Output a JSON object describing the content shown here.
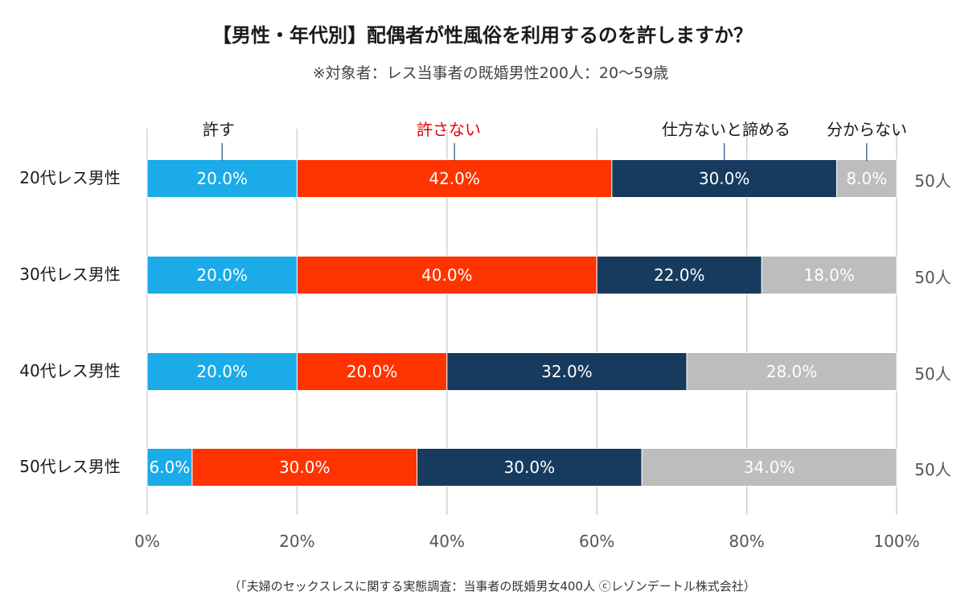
{
  "chart_data": {
    "type": "bar",
    "orientation": "horizontal",
    "stacked": true,
    "title": "【男性・年代別】配偶者が性風俗を利用するのを許しますか？",
    "subtitle": "※対象者：レス当事者の既婚男性200人：20～59歳",
    "categories": [
      "20代レス男性",
      "30代レス男性",
      "40代レス男性",
      "50代レス男性"
    ],
    "sample_sizes": [
      "50人",
      "50人",
      "50人",
      "50人"
    ],
    "series": [
      {
        "name": "許す",
        "color": "#1aabe8",
        "label_color": "#1a1a1a",
        "values": [
          20.0,
          20.0,
          20.0,
          6.0
        ]
      },
      {
        "name": "許さない",
        "color": "#ff3300",
        "label_color": "#e60000",
        "values": [
          42.0,
          40.0,
          20.0,
          30.0
        ]
      },
      {
        "name": "仕方ないと諦める",
        "color": "#173b5f",
        "label_color": "#1a1a1a",
        "values": [
          30.0,
          22.0,
          32.0,
          30.0
        ]
      },
      {
        "name": "分からない",
        "color": "#bdbdbd",
        "label_color": "#1a1a1a",
        "values": [
          8.0,
          18.0,
          28.0,
          34.0
        ]
      }
    ],
    "value_format": "0.0%",
    "xlim": [
      0,
      100
    ],
    "x_ticks": [
      "0%",
      "20%",
      "40%",
      "60%",
      "80%",
      "100%"
    ],
    "grid": true,
    "legend": "top, inline above first bar",
    "footnote": "（「夫婦のセックスレスに関する実態調査：当事者の既婚男女400人 ⓒレゾンデートル株式会社）"
  }
}
